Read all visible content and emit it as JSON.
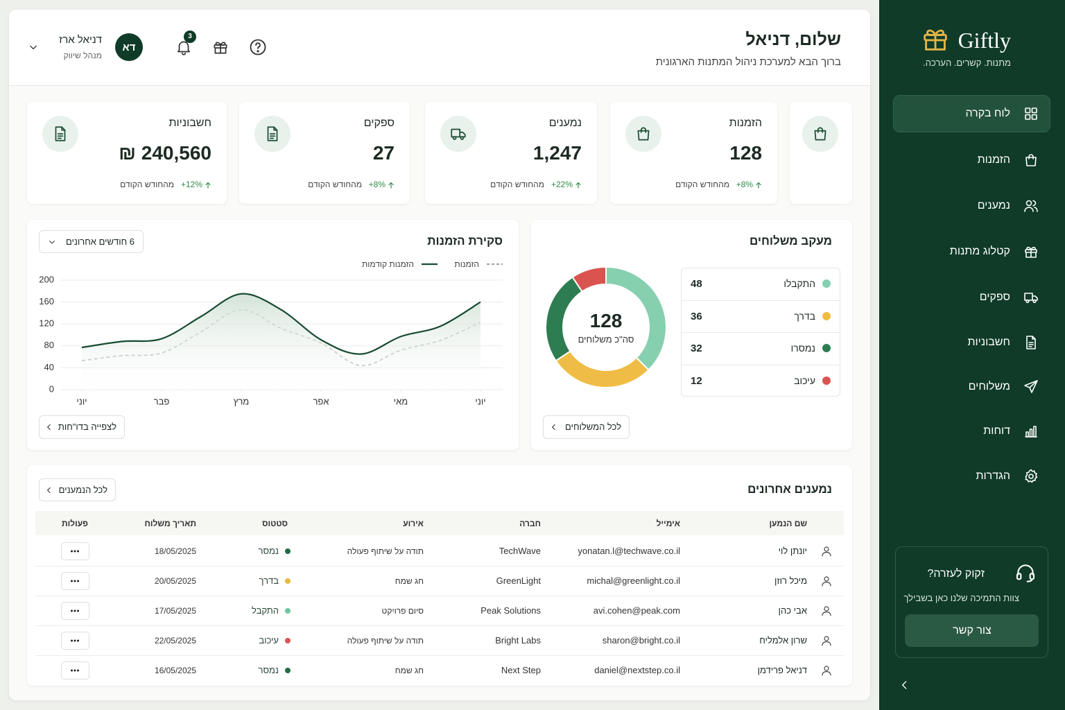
{
  "sidebar": {
    "brand": "Giftly",
    "tagline": "מתנות. קשרים. הערכה.",
    "nav": [
      "לוח בקרה",
      "הזמנות",
      "נמענים",
      "קטלוג מתנות",
      "ספקים",
      "חשבוניות",
      "משלוחים",
      "דוחות",
      "הגדרות"
    ],
    "help_title": "זקוק לעזרה?",
    "help_text": "צוות התמיכה שלנו כאן בשבילך",
    "help_button": "צור קשר"
  },
  "header": {
    "title": "שלום, דניאל",
    "subtitle": "ברוך הבא למערכת ניהול המתנות הארגונית",
    "user_name": "דניאל ארז",
    "user_role": "מנהל שיווק",
    "avatar": "דא",
    "notifications": "3"
  },
  "stats": [
    {
      "label": "הזמנות",
      "value": "128",
      "change": "+8%",
      "note": "מהחודש הקודם"
    },
    {
      "label": "נמענים",
      "value": "1,247",
      "change": "+22%",
      "note": "מהחודש הקודם"
    },
    {
      "label": "ספקים",
      "value": "27",
      "change": "+8%",
      "note": "מהחודש הקודם"
    },
    {
      "label": "חשבוניות",
      "value": "240,560 ₪",
      "change": "+12%",
      "note": "מהחודש הקודם"
    }
  ],
  "chart_data": [
    {
      "type": "line",
      "title": "סקירת הזמנות",
      "range": "6 חודשים אחרונים",
      "button": "לצפייה בדו\"חות",
      "x": [
        0,
        0.5,
        1,
        1.5,
        2,
        2.5,
        3,
        3.5,
        4,
        4.5,
        5
      ],
      "xlim": [
        0,
        5
      ],
      "xticks": [
        {
          "value": 0,
          "label": "יוני"
        },
        {
          "value": 1,
          "label": "פבר"
        },
        {
          "value": 2,
          "label": "מרץ"
        },
        {
          "value": 3,
          "label": "אפר"
        },
        {
          "value": 4,
          "label": "מאי"
        },
        {
          "value": 5,
          "label": "יוני"
        }
      ],
      "ylim": [
        0,
        200
      ],
      "yticks": [
        0,
        40,
        80,
        120,
        160,
        200
      ],
      "grid": true,
      "series": [
        {
          "name": "הזמנות",
          "color": "#a3aaa5",
          "dashed": true,
          "values": [
            53,
            62,
            67,
            106,
            146,
            112,
            85,
            44,
            72,
            90,
            123
          ]
        },
        {
          "name": "הזמנות קודמות",
          "color": "#164a30",
          "dashed": false,
          "area": true,
          "values": [
            77,
            88,
            93,
            134,
            175,
            146,
            91,
            65,
            97,
            116,
            160
          ]
        }
      ]
    },
    {
      "type": "pie",
      "donut": true,
      "title": "מעקב משלוחים",
      "categories": [
        "התקבלו",
        "בדרך",
        "נמסרו",
        "עיכוב"
      ],
      "values": [
        48,
        36,
        32,
        12
      ],
      "colors": [
        "#86d0b0",
        "#efbd45",
        "#2e7d52",
        "#d9534f"
      ],
      "center_value": "128",
      "center_label": "סה\"כ משלוחים",
      "button": "לכל המשלוחים"
    }
  ],
  "recipients": {
    "title": "נמענים אחרונים",
    "button": "לכל הנמענים",
    "columns": [
      "שם הנמען",
      "אימייל",
      "חברה",
      "אירוע",
      "סטטוס",
      "תאריך משלוח",
      "פעולות"
    ],
    "rows": [
      {
        "name": "יונתן לוי",
        "email": "yonatan.l@techwave.co.il",
        "company": "TechWave",
        "event": "תודה על שיתוף פעולה",
        "status": "נמסר",
        "status_color": "#1f6b45",
        "date": "18/05/2025"
      },
      {
        "name": "מיכל רוזן",
        "email": "michal@greenlight.co.il",
        "company": "GreenLight",
        "event": "חג שמח",
        "status": "בדרך",
        "status_color": "#e8b93d",
        "date": "20/05/2025"
      },
      {
        "name": "אבי כהן",
        "email": "avi.cohen@peak.com",
        "company": "Peak Solutions",
        "event": "סיום פרויקט",
        "status": "התקבל",
        "status_color": "#6fc59e",
        "date": "17/05/2025"
      },
      {
        "name": "שרון אלמליח",
        "email": "sharon@bright.co.il",
        "company": "Bright Labs",
        "event": "תודה על שיתוף פעולה",
        "status": "עיכוב",
        "status_color": "#d9534f",
        "date": "22/05/2025"
      },
      {
        "name": "דניאל פרידמן",
        "email": "daniel@nextstep.co.il",
        "company": "Next Step",
        "event": "חג שמח",
        "status": "נמסר",
        "status_color": "#1f6b45",
        "date": "16/05/2025"
      }
    ]
  }
}
